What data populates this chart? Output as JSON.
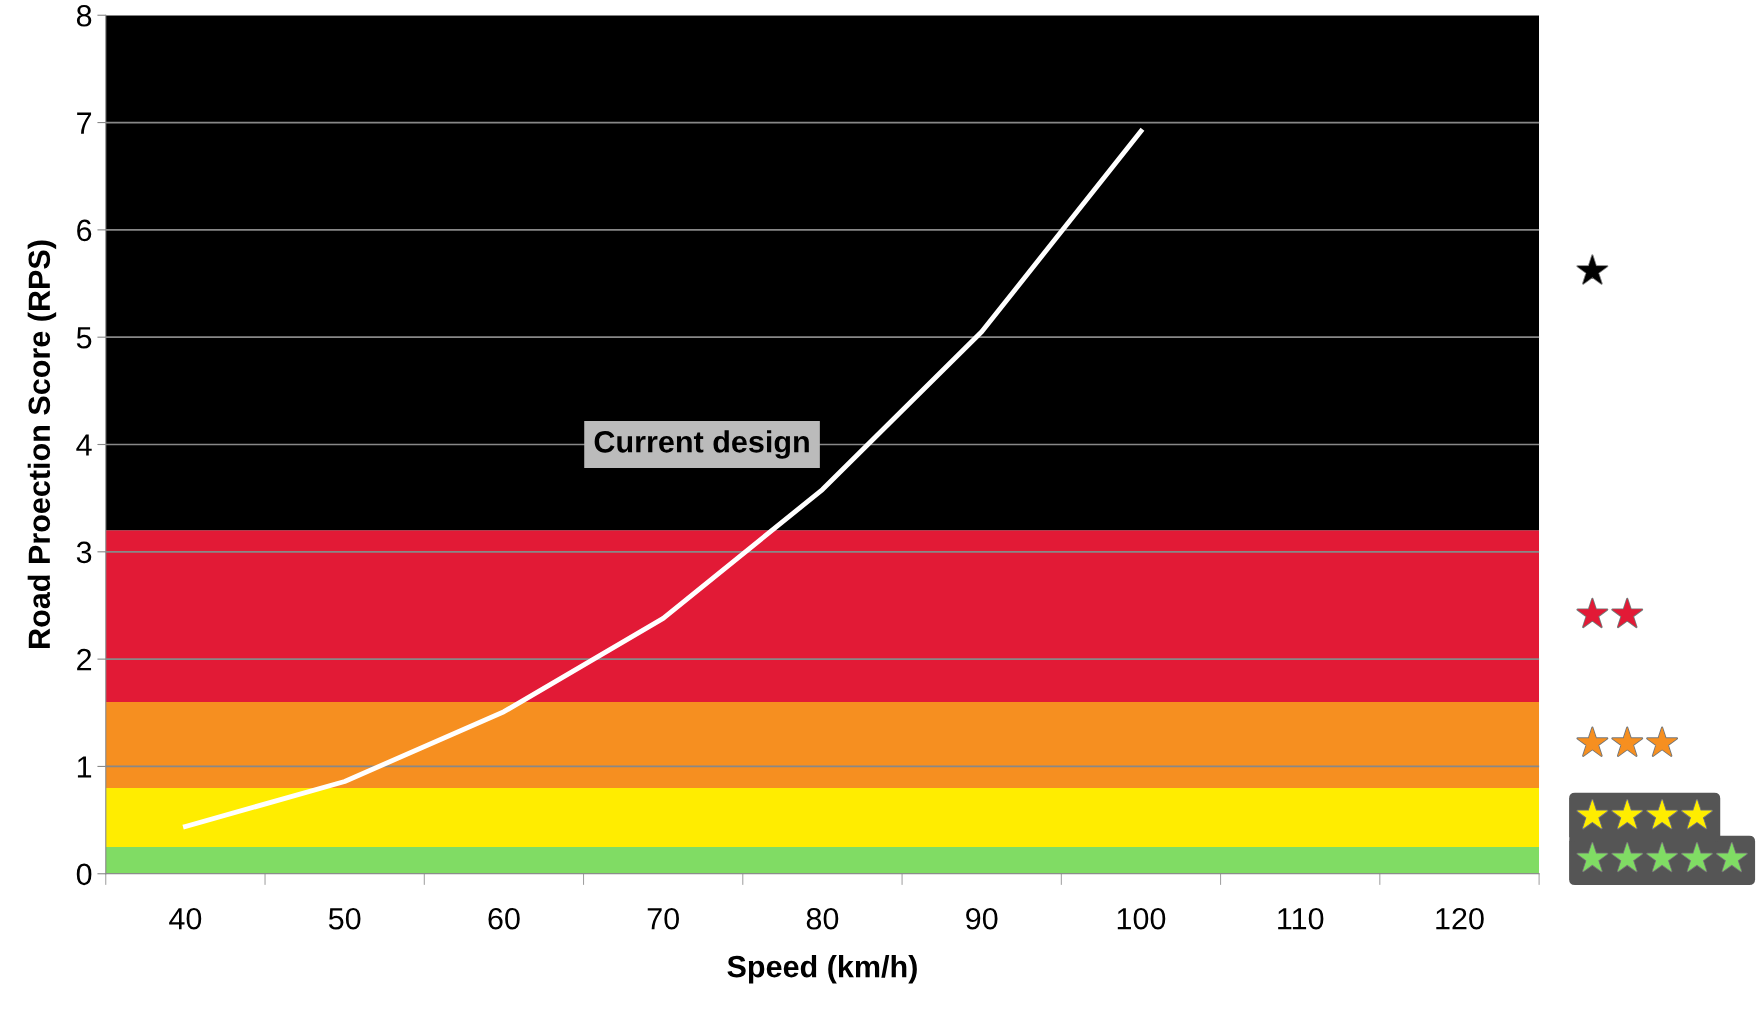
{
  "chart_data": {
    "type": "line",
    "xlabel": "Speed (km/h)",
    "ylabel": "Road Proection Score (RPS)",
    "categories": [
      "40",
      "50",
      "60",
      "70",
      "80",
      "90",
      "100",
      "110",
      "120"
    ],
    "series": [
      {
        "color": "#ffffff",
        "values": [
          0.44,
          0.86,
          1.51,
          2.38,
          3.58,
          5.05,
          6.92,
          null,
          null
        ]
      }
    ],
    "ylim": [
      0,
      8
    ],
    "yticks": [
      0,
      1,
      2,
      3,
      4,
      5,
      6,
      7,
      8
    ],
    "grid": "y",
    "marker": "none",
    "line_style": "solid",
    "bands": [
      {
        "axis": "y",
        "from": 0,
        "to": 0.25,
        "label": "★★★★★",
        "color": "#80dc64"
      },
      {
        "axis": "y",
        "from": 0.25,
        "to": 0.8,
        "label": "★★★★",
        "color": "#ffed00"
      },
      {
        "axis": "y",
        "from": 0.8,
        "to": 1.6,
        "label": "★★★",
        "color": "#f68f20"
      },
      {
        "axis": "y",
        "from": 1.6,
        "to": 3.2,
        "label": "★★",
        "color": "#e21a36"
      },
      {
        "axis": "y",
        "from": 3.2,
        "to": 8,
        "label": "★",
        "color": "#000000"
      }
    ],
    "annotations": [
      "Current design"
    ]
  }
}
